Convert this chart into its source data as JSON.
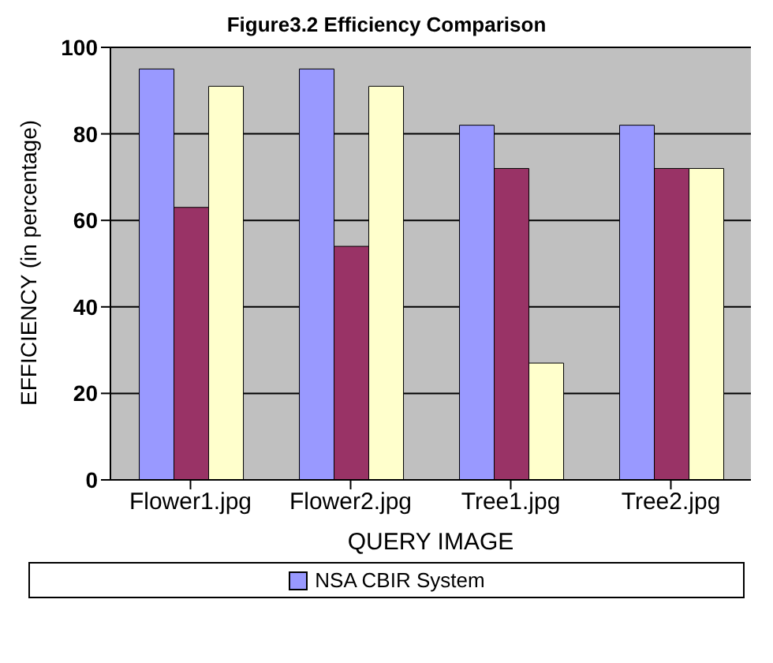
{
  "chart_data": {
    "type": "bar",
    "title": "Figure3.2 Efficiency Comparison",
    "xlabel": "QUERY IMAGE",
    "ylabel": "EFFICIENCY (in percentage)",
    "categories": [
      "Flower1.jpg",
      "Flower2.jpg",
      "Tree1.jpg",
      "Tree2.jpg"
    ],
    "series": [
      {
        "name": "NSA CBIR System",
        "color": "#9999ff",
        "values": [
          95,
          95,
          82,
          82
        ]
      },
      {
        "color": "#993366",
        "values": [
          63,
          54,
          72,
          72
        ]
      },
      {
        "color": "#ffffcc",
        "values": [
          91,
          91,
          27,
          72
        ]
      }
    ],
    "ylim": [
      0,
      100
    ],
    "yticks": [
      0,
      20,
      40,
      60,
      80,
      100
    ],
    "grid": "y",
    "legend": "bottom"
  }
}
